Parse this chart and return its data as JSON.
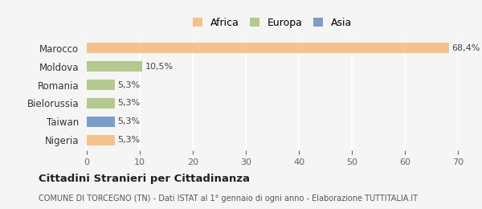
{
  "categories": [
    "Marocco",
    "Moldova",
    "Romania",
    "Bielorussia",
    "Taiwan",
    "Nigeria"
  ],
  "values": [
    68.4,
    10.5,
    5.3,
    5.3,
    5.3,
    5.3
  ],
  "labels": [
    "68,4%",
    "10,5%",
    "5,3%",
    "5,3%",
    "5,3%",
    "5,3%"
  ],
  "colors": [
    "#f5c18c",
    "#b5c98e",
    "#b5c98e",
    "#b5c98e",
    "#7b9ec7",
    "#f5c18c"
  ],
  "legend": [
    {
      "label": "Africa",
      "color": "#f5c18c"
    },
    {
      "label": "Europa",
      "color": "#b5c98e"
    },
    {
      "label": "Asia",
      "color": "#7b9ec7"
    }
  ],
  "xlim": [
    0,
    70
  ],
  "xticks": [
    0,
    10,
    20,
    30,
    40,
    50,
    60,
    70
  ],
  "title": "Cittadini Stranieri per Cittadinanza",
  "subtitle": "COMUNE DI TORCEGNO (TN) - Dati ISTAT al 1° gennaio di ogni anno - Elaborazione TUTTITALIA.IT",
  "background_color": "#f5f5f5",
  "bar_height": 0.55
}
